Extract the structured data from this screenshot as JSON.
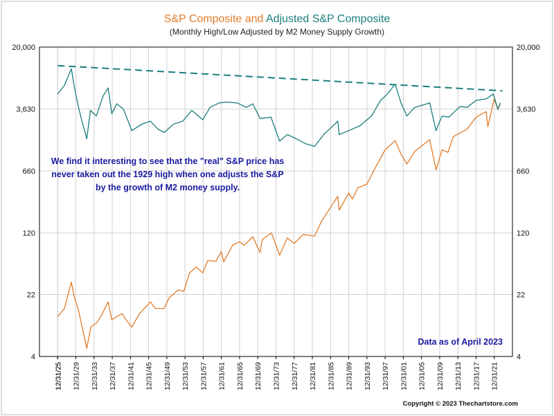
{
  "title": {
    "part1": "S&P Composite",
    "part2": " and ",
    "part3": "Adjusted S&P Composite",
    "subtitle": "(Monthly High/Low Adjusted by M2 Money Supply Growth)"
  },
  "annotation": "We find it interesting to see that the \"real\" S&P price has never taken out the 1929 high when one adjusts the S&P by the growth of M2 money supply.",
  "data_note": "Data as of April 2023",
  "copyright": "Copyright © 2023 Thechartstore.com",
  "colors": {
    "sp_composite": "#e07b28",
    "adjusted": "#1a7d7d",
    "trendline": "#1a7d7d",
    "grid": "#d0d0d0",
    "annotation_text": "#1a1aa0"
  },
  "chart_data": {
    "type": "line",
    "title": "S&P Composite and Adjusted S&P Composite",
    "subtitle": "(Monthly High/Low Adjusted by M2 Money Supply Growth)",
    "y_scale": "log",
    "ylim": [
      4,
      20000
    ],
    "y_ticks": [
      4,
      22,
      120,
      660,
      3630,
      20000
    ],
    "y_tick_labels": [
      "4",
      "22",
      "120",
      "660",
      "3,630",
      "20,000"
    ],
    "xlim": [
      "1921-12-31",
      "2025-12-31"
    ],
    "x_tick_labels": [
      "12/31/25",
      "12/31/29",
      "12/31/33",
      "12/31/37",
      "12/31/41",
      "12/31/45",
      "12/31/49",
      "12/31/53",
      "12/31/57",
      "12/31/61",
      "12/31/65",
      "12/31/69",
      "12/31/73",
      "12/31/77",
      "12/31/81",
      "12/31/85",
      "12/31/89",
      "12/31/93",
      "12/31/97",
      "12/31/01",
      "12/31/05",
      "12/31/09",
      "12/31/13",
      "12/31/17",
      "12/31/21",
      "12/31/25"
    ],
    "grid": true,
    "legend": "none",
    "series": [
      {
        "name": "S&P Composite",
        "color": "#e07b28",
        "x": [
          1926.0,
          1927.5,
          1929.0,
          1929.7,
          1930.5,
          1932.4,
          1933.3,
          1934.5,
          1935.5,
          1937.1,
          1937.9,
          1939.0,
          1940.2,
          1941.0,
          1942.3,
          1944.0,
          1946.4,
          1947.5,
          1949.4,
          1950.5,
          1952.5,
          1953.7,
          1955.0,
          1956.5,
          1957.9,
          1959.0,
          1960.8,
          1962.0,
          1962.5,
          1964.5,
          1966.0,
          1967.0,
          1968.9,
          1970.5,
          1971.0,
          1973.0,
          1974.8,
          1976.5,
          1978.0,
          1980.0,
          1982.5,
          1984.0,
          1987.6,
          1987.9,
          1990.0,
          1990.8,
          1992.0,
          1994.0,
          1996.0,
          1998.0,
          2000.2,
          2001.5,
          2002.8,
          2004.5,
          2007.8,
          2009.2,
          2010.5,
          2011.8,
          2013.0,
          2016.0,
          2018.0,
          2020.2,
          2020.6,
          2022.0,
          2022.8,
          2023.3
        ],
        "y": [
          12,
          15,
          31,
          20,
          15,
          5,
          9,
          10,
          12,
          18,
          11,
          12,
          13,
          11,
          9,
          13,
          18,
          15,
          15,
          20,
          25,
          24,
          40,
          47,
          40,
          56,
          55,
          72,
          54,
          86,
          94,
          85,
          108,
          70,
          100,
          120,
          65,
          105,
          90,
          115,
          110,
          165,
          330,
          225,
          360,
          305,
          415,
          460,
          750,
          1180,
          1520,
          1050,
          800,
          1130,
          1565,
          680,
          1180,
          1100,
          1700,
          2080,
          2900,
          3390,
          2240,
          4800,
          3580,
          4160
        ]
      },
      {
        "name": "Adjusted S&P Composite",
        "color": "#1a7d7d",
        "x": [
          1926.0,
          1927.5,
          1929.0,
          1929.7,
          1930.5,
          1931.2,
          1932.4,
          1933.2,
          1934.5,
          1936.0,
          1937.1,
          1937.9,
          1939.0,
          1940.5,
          1942.3,
          1944.5,
          1946.4,
          1948.0,
          1949.4,
          1951.5,
          1953.5,
          1955.5,
          1957.9,
          1959.5,
          1961.5,
          1963.0,
          1965.5,
          1967.5,
          1968.9,
          1970.5,
          1972.9,
          1974.8,
          1976.5,
          1978.5,
          1980.5,
          1982.5,
          1984.5,
          1987.6,
          1987.9,
          1990.0,
          1992.5,
          1995.0,
          1997.0,
          1998.5,
          2000.2,
          2001.5,
          2002.8,
          2004.5,
          2007.8,
          2009.2,
          2010.5,
          2012.0,
          2014.5,
          2016.0,
          2018.0,
          2020.2,
          2021.8,
          2022.8,
          2023.3
        ],
        "y": [
          5500,
          7000,
          11000,
          6500,
          4000,
          2800,
          1600,
          3500,
          3000,
          5200,
          6500,
          3200,
          4200,
          3600,
          2000,
          2400,
          2600,
          2100,
          1900,
          2400,
          2600,
          3500,
          2700,
          3800,
          4300,
          4400,
          4300,
          3800,
          4200,
          2800,
          2900,
          1500,
          1800,
          1600,
          1400,
          1300,
          1800,
          2600,
          1800,
          2000,
          2300,
          3000,
          4600,
          5500,
          7200,
          4300,
          3000,
          3800,
          4300,
          2000,
          3000,
          2900,
          3900,
          3800,
          4600,
          4800,
          5500,
          3600,
          4300
        ]
      },
      {
        "name": "",
        "color": "#1a7d7d",
        "dashed": true,
        "x": [
          1926.0,
          2023.8
        ],
        "y": [
          12000,
          6000
        ]
      }
    ]
  }
}
